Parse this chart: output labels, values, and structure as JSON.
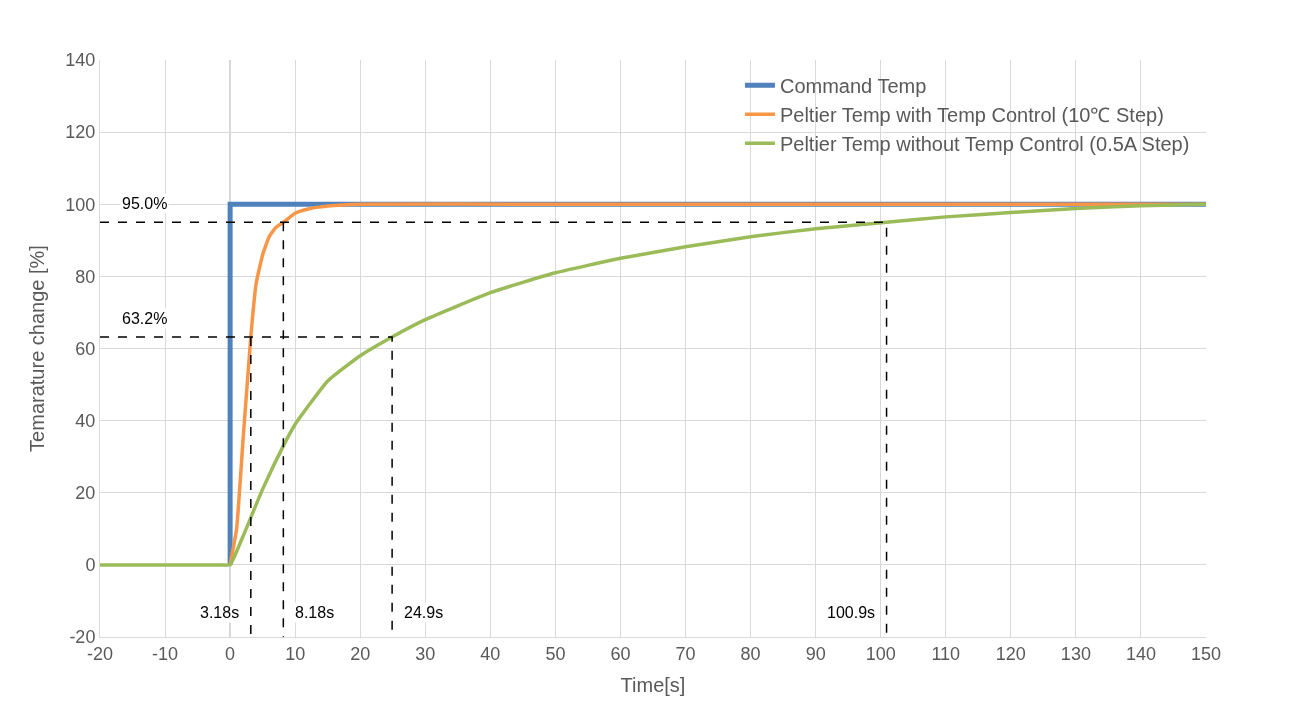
{
  "chart_data": {
    "type": "line",
    "xlabel": "Time[s]",
    "ylabel": "Temarature change [%]",
    "xlim": [
      -20,
      150
    ],
    "xticks": [
      -20,
      -10,
      0,
      10,
      20,
      30,
      40,
      50,
      60,
      70,
      80,
      90,
      100,
      110,
      120,
      130,
      140,
      150
    ],
    "ylim": [
      -20,
      140
    ],
    "yticks": [
      -20,
      0,
      20,
      40,
      60,
      80,
      100,
      120,
      140
    ],
    "grid": true,
    "legend": "top right",
    "marker": "none",
    "series": [
      {
        "name": "Command Temp",
        "color": "#4f81bd",
        "x": [
          0,
          0,
          150
        ],
        "values": [
          0,
          100,
          100
        ]
      },
      {
        "name": "Peltier Temp with Temp Control (10℃ Step)",
        "color": "#f79646",
        "x": [
          0,
          1,
          2,
          3.18,
          4,
          5,
          6,
          7,
          8.18,
          10,
          12,
          15,
          20,
          50,
          150
        ],
        "values": [
          0,
          10,
          35,
          63.2,
          78,
          86,
          91,
          93.5,
          95,
          97.5,
          98.7,
          99.5,
          100,
          100,
          100
        ]
      },
      {
        "name": "Peltier Temp without Temp Control (0.5A Step)",
        "color": "#9bbb59",
        "x": [
          -20,
          -10,
          -1,
          0,
          2,
          5,
          8.18,
          10,
          15,
          20,
          24.9,
          30,
          40,
          50,
          60,
          70,
          80,
          90,
          100.9,
          110,
          120,
          130,
          140,
          150
        ],
        "values": [
          0,
          0,
          0,
          0,
          8,
          21,
          33,
          39,
          51,
          58,
          63.2,
          68,
          75.5,
          81,
          85,
          88.2,
          91,
          93.2,
          95,
          96.5,
          97.7,
          98.8,
          99.6,
          100
        ]
      },
      {
        "color": "#000000",
        "line_style": "dashed",
        "x": [
          -20,
          100.9,
          100.9
        ],
        "values": [
          95,
          95,
          -20
        ]
      },
      {
        "color": "#000000",
        "line_style": "dashed",
        "x": [
          -20,
          24.9,
          24.9
        ],
        "values": [
          63.2,
          63.2,
          -20
        ]
      },
      {
        "color": "#000000",
        "line_style": "dashed",
        "x": [
          3.18,
          3.18
        ],
        "values": [
          63.2,
          -20
        ]
      },
      {
        "color": "#000000",
        "line_style": "dashed",
        "x": [
          8.18,
          8.18
        ],
        "values": [
          95,
          -20
        ]
      }
    ],
    "annotations": [
      {
        "text": "95.0%",
        "x": -20,
        "y": 95
      },
      {
        "text": "63.2%",
        "x": -20,
        "y": 63.2
      },
      {
        "text": "3.18s",
        "x": 3.18,
        "y": -20
      },
      {
        "text": "8.18s",
        "x": 8.18,
        "y": -20
      },
      {
        "text": "24.9s",
        "x": 24.9,
        "y": -20
      },
      {
        "text": "100.9s",
        "x": 100.9,
        "y": -20
      }
    ]
  }
}
